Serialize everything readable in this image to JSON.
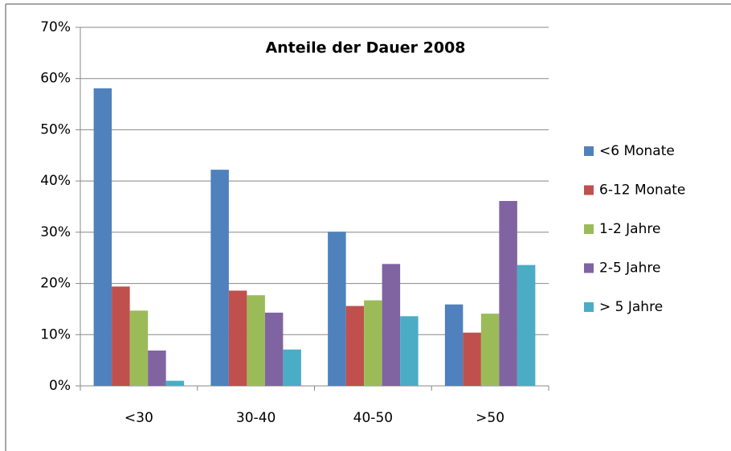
{
  "chart_data": {
    "type": "bar",
    "title": "Anteile der Dauer 2008",
    "categories": [
      "<30",
      "30-40",
      "40-50",
      ">50"
    ],
    "series": [
      {
        "name": "<6 Monate",
        "color": "#4f81bd",
        "values": [
          58.1,
          42.2,
          30.1,
          15.9
        ]
      },
      {
        "name": "6-12 Monate",
        "color": "#c0504d",
        "values": [
          19.4,
          18.6,
          15.6,
          10.4
        ]
      },
      {
        "name": "1-2 Jahre",
        "color": "#9bbb59",
        "values": [
          14.7,
          17.7,
          16.7,
          14.1
        ]
      },
      {
        "name": "2-5 Jahre",
        "color": "#8064a2",
        "values": [
          6.9,
          14.3,
          23.8,
          36.1
        ]
      },
      {
        "name": "> 5 Jahre",
        "color": "#4bacc6",
        "values": [
          1.0,
          7.1,
          13.6,
          23.6
        ]
      }
    ],
    "ylim": [
      0,
      70
    ],
    "yticks": [
      {
        "value": 0,
        "label": "0%"
      },
      {
        "value": 10,
        "label": "10%"
      },
      {
        "value": 20,
        "label": "20%"
      },
      {
        "value": 30,
        "label": "30%"
      },
      {
        "value": 40,
        "label": "40%"
      },
      {
        "value": 50,
        "label": "50%"
      },
      {
        "value": 60,
        "label": "60%"
      },
      {
        "value": 70,
        "label": "70%"
      }
    ],
    "grid": true,
    "legend": "right"
  }
}
